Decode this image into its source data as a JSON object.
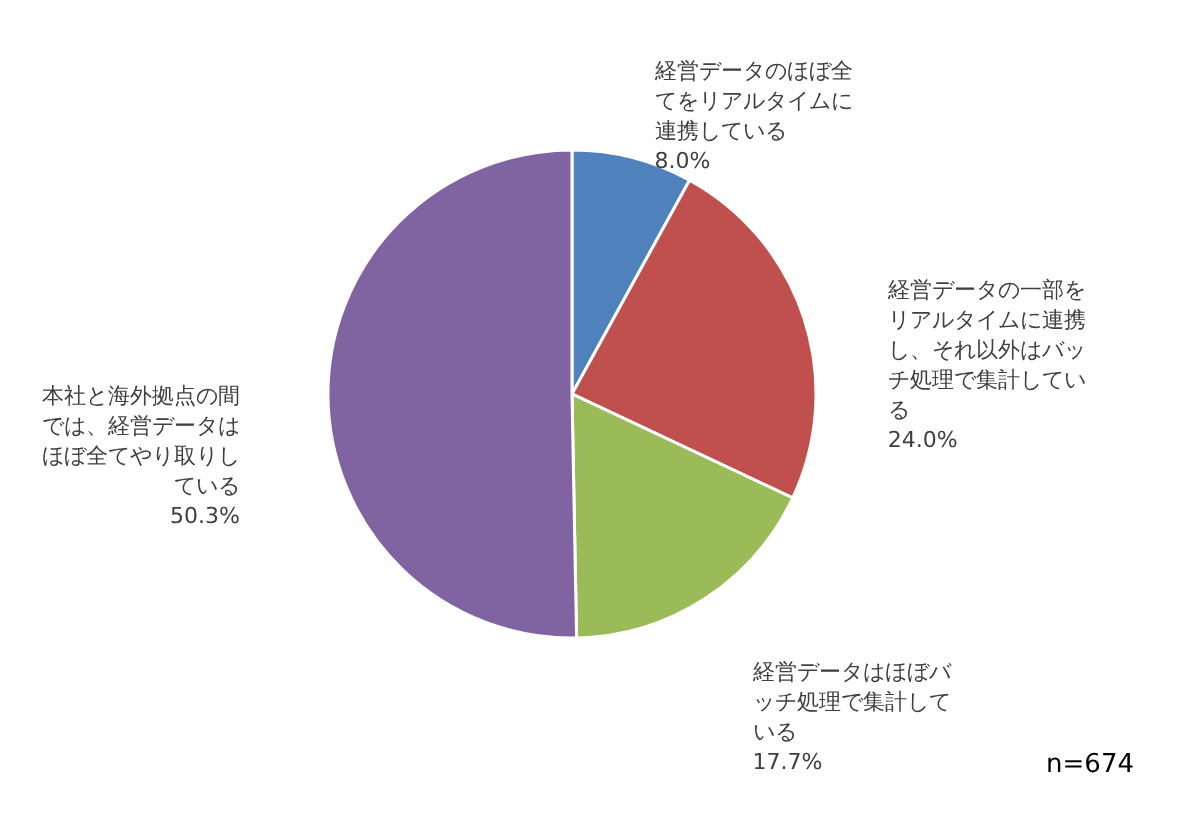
{
  "chart_data": {
    "type": "pie",
    "categories": [
      "経営データのほぼ全てをリアルタイムに連携している",
      "経営データの一部をリアルタイムに連携し、それ以外はバッチ処理で集計している",
      "経営データはほぼバッチ処理で集計している",
      "本社と海外拠点の間では、経営データはほぼ全てやり取りしている"
    ],
    "values": [
      8.0,
      24.0,
      17.7,
      50.3
    ],
    "value_labels": [
      "8.0%",
      "24.0%",
      "17.7%",
      "50.3%"
    ],
    "colors": [
      "#4f81bd",
      "#c0504d",
      "#9bbb59",
      "#8064a2"
    ],
    "legend": false,
    "annotations": [
      "n=674"
    ]
  }
}
